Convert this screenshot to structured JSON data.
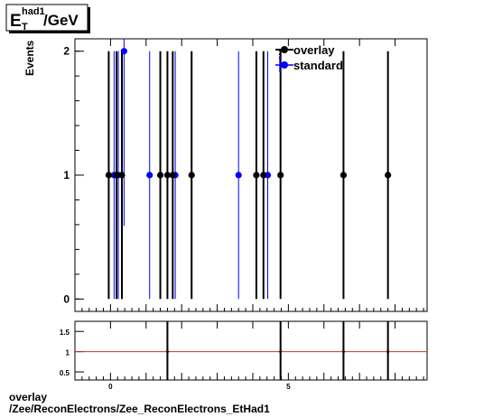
{
  "title": {
    "main": "E",
    "sub": "T",
    "sup": "had1",
    "unit": "/GeV"
  },
  "ylabel": "Events",
  "legend": [
    {
      "name": "overlay",
      "color": "#000000"
    },
    {
      "name": "standard",
      "color": "#0000ff"
    }
  ],
  "caption": {
    "line1": "overlay",
    "line2": "/Zee/ReconElectrons/Zee_ReconElectrons_EtHad1"
  },
  "chart_data": [
    {
      "type": "scatter",
      "title": "E_T^had1/GeV",
      "ylabel": "Events",
      "xlim": [
        -1.0,
        8.9
      ],
      "ylim": [
        -0.1,
        2.1
      ],
      "yticks": [
        0,
        1,
        2
      ],
      "grid": false,
      "legend_position": "top-right",
      "series": [
        {
          "name": "overlay",
          "color": "#000000",
          "x": [
            -0.05,
            0.17,
            0.32,
            1.4,
            1.6,
            1.75,
            2.28,
            4.1,
            4.3,
            4.78,
            6.55,
            7.8
          ],
          "y": [
            1,
            1,
            1,
            1,
            1,
            1,
            1,
            1,
            1,
            1,
            1,
            1
          ],
          "yerr": [
            1,
            1,
            1,
            1,
            1,
            1,
            1,
            1,
            1,
            1,
            1,
            1
          ]
        },
        {
          "name": "standard",
          "color": "#0000ff",
          "x": [
            0.1,
            0.22,
            0.38,
            1.1,
            1.82,
            3.6,
            4.42
          ],
          "y": [
            1,
            1,
            2,
            1,
            1,
            1,
            1
          ],
          "yerr": [
            1,
            1,
            1.41,
            1,
            1,
            1,
            1
          ]
        }
      ]
    },
    {
      "type": "scatter",
      "xlim": [
        -1.0,
        8.9
      ],
      "ylim": [
        0.3,
        1.75
      ],
      "yticks": [
        0.5,
        1,
        1.5
      ],
      "ytick_labels": [
        "0.5",
        "1",
        "1.5"
      ],
      "xticks": [
        0,
        5
      ],
      "xtick_labels": [
        "0",
        "5"
      ],
      "reference_line": 1,
      "reference_color": "#c0392b",
      "grid": false,
      "series": [
        {
          "name": "",
          "color": "#000000",
          "x": [
            1.6,
            4.78,
            6.55,
            7.8
          ],
          "y": [
            1,
            1,
            1,
            1
          ],
          "yerr": [
            1.5,
            1.5,
            1.5,
            1.5
          ]
        }
      ]
    }
  ]
}
